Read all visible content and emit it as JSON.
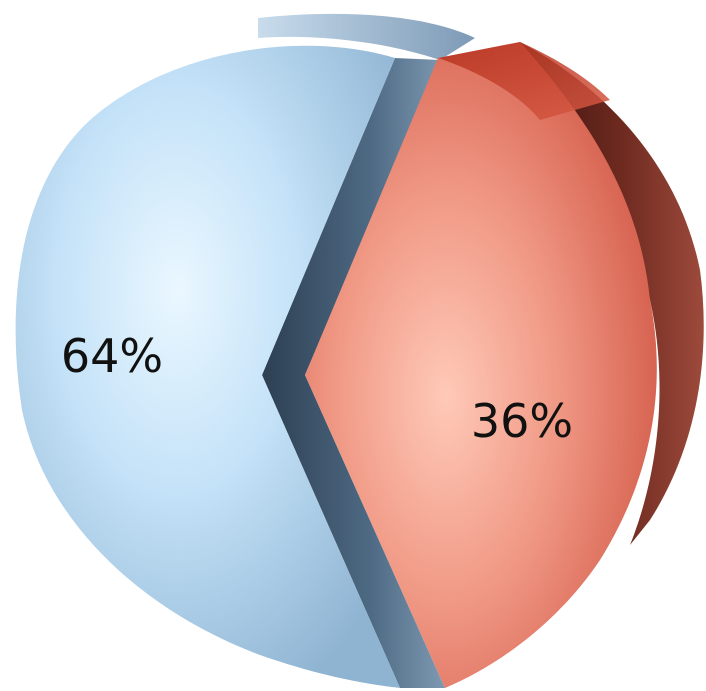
{
  "chart_data": {
    "type": "pie",
    "slices": [
      {
        "label": "64%",
        "value": 64,
        "color": "#b8d7f0"
      },
      {
        "label": "36%",
        "value": 36,
        "color": "#e8705c"
      }
    ]
  }
}
